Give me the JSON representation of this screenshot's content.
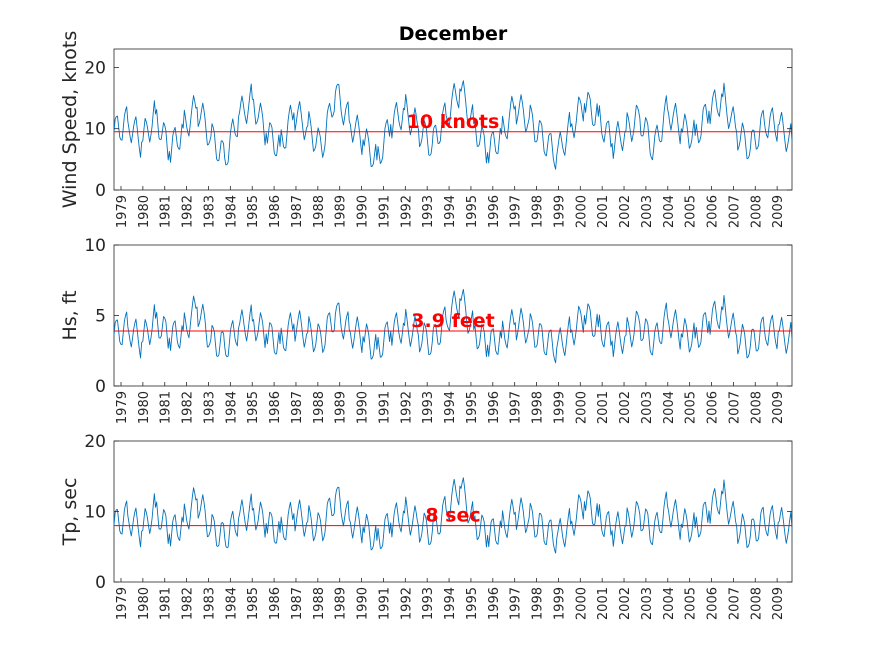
{
  "figure": {
    "title": "December"
  },
  "chart_data": [
    {
      "type": "line",
      "title": "December",
      "xlabel": "",
      "ylabel": "Wind Speed, knots",
      "ylim": [
        0,
        23
      ],
      "yticks": [
        0,
        10,
        20
      ],
      "x_tick_labels": [
        "1979",
        "1980",
        "1981",
        "1982",
        "1983",
        "1984",
        "1985",
        "1986",
        "1987",
        "1988",
        "1989",
        "1990",
        "1991",
        "1992",
        "1993",
        "1994",
        "1995",
        "1996",
        "1997",
        "1998",
        "1999",
        "2000",
        "2001",
        "2002",
        "2003",
        "2004",
        "2005",
        "2006",
        "2007",
        "2008",
        "2009"
      ],
      "series": [
        {
          "name": "Wind Speed",
          "color": "#0072BD",
          "description": "dense hourly December wind speed, approx. range 0-23 knots",
          "values": [
            9.5,
            11.2,
            7.8,
            12.4,
            6.3,
            10.1,
            13.5,
            8.7,
            5.2,
            11.9,
            14.8,
            9.3,
            7.1,
            12.6,
            10.4,
            6.8,
            15.9,
            11.3,
            8.2,
            4.9,
            10.7,
            13.1,
            9.9,
            7.4,
            12.2,
            16.5,
            10.8,
            6.1,
            9.1,
            13.7,
            11.6,
            8.4,
            5.7,
            10.3,
            14.1,
            12.0,
            7.6,
            9.7,
            11.8,
            6.6,
            13.3,
            10.0,
            8.9,
            12.9,
            15.2,
            9.4,
            6.9,
            11.1,
            10.6,
            7.9
          ]
        }
      ],
      "reference_line": {
        "value": 9.5,
        "color": "#FF0000",
        "label": "10 knots"
      }
    },
    {
      "type": "line",
      "title": "",
      "xlabel": "",
      "ylabel": "Hs, ft",
      "ylim": [
        0,
        10
      ],
      "yticks": [
        0,
        5,
        10
      ],
      "x_tick_labels": [
        "1979",
        "1980",
        "1981",
        "1982",
        "1983",
        "1984",
        "1985",
        "1986",
        "1987",
        "1988",
        "1989",
        "1990",
        "1991",
        "1992",
        "1993",
        "1994",
        "1995",
        "1996",
        "1997",
        "1998",
        "1999",
        "2000",
        "2001",
        "2002",
        "2003",
        "2004",
        "2005",
        "2006",
        "2007",
        "2008",
        "2009"
      ],
      "series": [
        {
          "name": "Hs",
          "color": "#0072BD",
          "description": "significant wave height, approx. range 1.5-10 ft",
          "values": [
            3.6,
            4.2,
            3.1,
            4.8,
            3.4,
            3.9,
            5.6,
            3.3,
            2.8,
            4.1,
            4.6,
            3.7,
            3.0,
            4.4,
            3.8,
            3.2,
            5.1,
            4.0,
            3.5,
            2.6,
            3.9,
            4.3,
            3.6,
            3.1,
            4.7,
            6.2,
            4.0,
            2.9,
            3.4,
            4.5,
            4.1,
            3.3,
            2.7,
            3.8,
            5.0,
            4.2,
            3.2,
            3.6,
            4.4,
            3.0,
            4.9,
            3.7,
            3.4,
            4.6,
            5.4,
            3.5,
            2.9,
            4.0,
            3.8,
            3.3
          ]
        }
      ],
      "reference_line": {
        "value": 3.9,
        "color": "#FF0000",
        "label": "3.9 feet"
      }
    },
    {
      "type": "line",
      "title": "",
      "xlabel": "",
      "ylabel": "Tp, sec",
      "ylim": [
        0,
        20
      ],
      "yticks": [
        0,
        10,
        20
      ],
      "x_tick_labels": [
        "1979",
        "1980",
        "1981",
        "1982",
        "1983",
        "1984",
        "1985",
        "1986",
        "1987",
        "1988",
        "1989",
        "1990",
        "1991",
        "1992",
        "1993",
        "1994",
        "1995",
        "1996",
        "1997",
        "1998",
        "1999",
        "2000",
        "2001",
        "2002",
        "2003",
        "2004",
        "2005",
        "2006",
        "2007",
        "2008",
        "2009"
      ],
      "series": [
        {
          "name": "Tp",
          "color": "#0072BD",
          "description": "peak wave period, approx. range 4-18 sec",
          "values": [
            8.1,
            9.4,
            7.2,
            10.6,
            6.8,
            8.5,
            11.8,
            7.6,
            6.3,
            9.0,
            10.2,
            8.3,
            7.0,
            9.7,
            8.6,
            7.4,
            12.1,
            8.9,
            7.8,
            5.9,
            8.4,
            9.8,
            8.0,
            7.1,
            10.3,
            13.6,
            8.7,
            6.6,
            7.7,
            9.9,
            9.1,
            7.5,
            6.2,
            8.2,
            11.4,
            9.3,
            7.3,
            8.0,
            9.6,
            6.9,
            10.8,
            8.2,
            7.7,
            10.1,
            12.5,
            7.9,
            6.7,
            8.8,
            8.4,
            7.5
          ]
        }
      ],
      "reference_line": {
        "value": 8,
        "color": "#FF0000",
        "label": "8 sec"
      }
    }
  ]
}
